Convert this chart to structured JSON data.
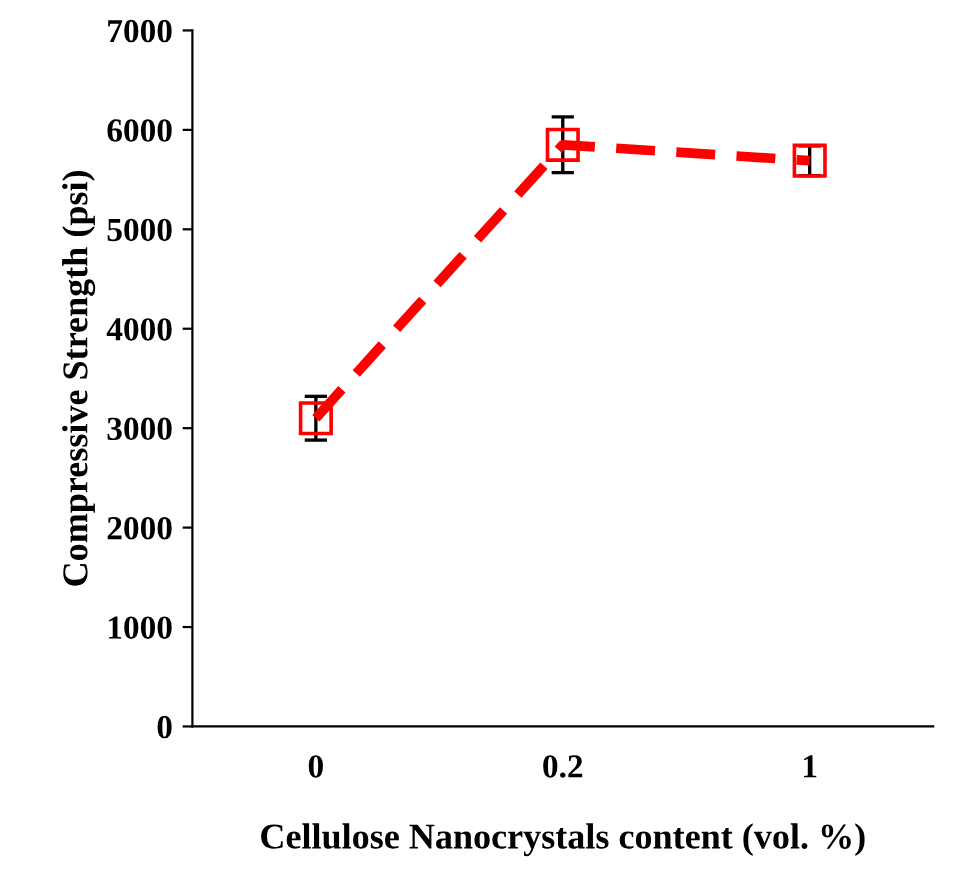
{
  "chart_data": {
    "type": "line",
    "xlabel": "Cellulose Nanocrystals content (vol. %)",
    "ylabel": "Compressive Strength (psi)",
    "categories": [
      "0",
      "0.2",
      "1"
    ],
    "series": [
      {
        "color": "#ff0000",
        "values": [
          3100,
          5850,
          5690
        ],
        "errors": [
          220,
          280,
          150
        ]
      }
    ],
    "ylim": [
      0,
      7000
    ],
    "yticks": [
      0,
      1000,
      2000,
      3000,
      4000,
      5000,
      6000,
      7000
    ],
    "marker": "square",
    "line_style": "dashed",
    "grid": false,
    "legend": false
  }
}
